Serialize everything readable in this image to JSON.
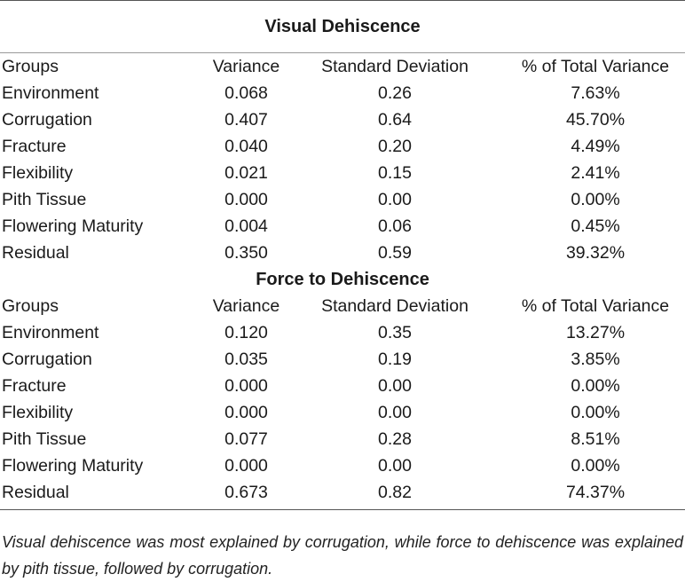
{
  "table": {
    "sections": [
      {
        "title": "Visual Dehiscence",
        "headers": [
          "Groups",
          "Variance",
          "Standard Deviation",
          "% of Total Variance"
        ],
        "rows": [
          {
            "group": "Environment",
            "variance": "0.068",
            "sd": "0.26",
            "pct": "7.63%"
          },
          {
            "group": "Corrugation",
            "variance": "0.407",
            "sd": "0.64",
            "pct": "45.70%"
          },
          {
            "group": "Fracture",
            "variance": "0.040",
            "sd": "0.20",
            "pct": "4.49%"
          },
          {
            "group": "Flexibility",
            "variance": "0.021",
            "sd": "0.15",
            "pct": "2.41%"
          },
          {
            "group": "Pith Tissue",
            "variance": "0.000",
            "sd": "0.00",
            "pct": "0.00%"
          },
          {
            "group": "Flowering Maturity",
            "variance": "0.004",
            "sd": "0.06",
            "pct": "0.45%"
          },
          {
            "group": "Residual",
            "variance": "0.350",
            "sd": "0.59",
            "pct": "39.32%"
          }
        ]
      },
      {
        "title": "Force to Dehiscence",
        "headers": [
          "Groups",
          "Variance",
          "Standard Deviation",
          "% of Total Variance"
        ],
        "rows": [
          {
            "group": "Environment",
            "variance": "0.120",
            "sd": "0.35",
            "pct": "13.27%"
          },
          {
            "group": "Corrugation",
            "variance": "0.035",
            "sd": "0.19",
            "pct": "3.85%"
          },
          {
            "group": "Fracture",
            "variance": "0.000",
            "sd": "0.00",
            "pct": "0.00%"
          },
          {
            "group": "Flexibility",
            "variance": "0.000",
            "sd": "0.00",
            "pct": "0.00%"
          },
          {
            "group": "Pith Tissue",
            "variance": "0.077",
            "sd": "0.28",
            "pct": "8.51%"
          },
          {
            "group": "Flowering Maturity",
            "variance": "0.000",
            "sd": "0.00",
            "pct": "0.00%"
          },
          {
            "group": "Residual",
            "variance": "0.673",
            "sd": "0.82",
            "pct": "74.37%"
          }
        ]
      }
    ]
  },
  "footnote": "Visual dehiscence was most explained by corrugation, while force to dehiscence was explained by pith tissue, followed by corrugation."
}
